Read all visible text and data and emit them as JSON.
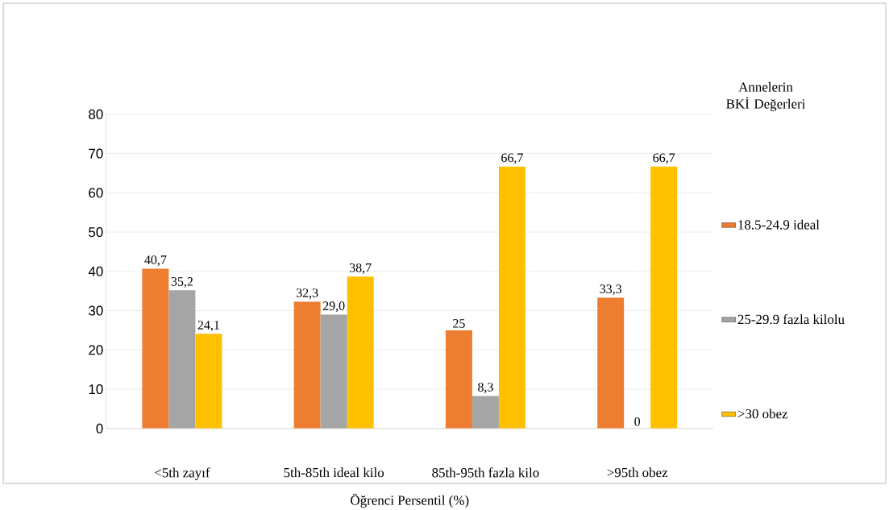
{
  "chart_data": {
    "type": "bar",
    "categories": [
      "<5th zayıf",
      "5th-85th ideal kilo",
      "85th-95th fazla kilo",
      ">95th obez"
    ],
    "xlabel": "Öğrenci Persentil  (%)",
    "legend_title": "Annelerin BKİ Değerleri",
    "series": [
      {
        "name": "18.5-24.9 ideal",
        "color": "#ed7d31",
        "values": [
          40.7,
          32.3,
          25,
          33.3
        ],
        "value_labels": [
          "40,7",
          "32,3",
          "25",
          "33,3"
        ]
      },
      {
        "name": "25-29.9 fazla kilolu",
        "color": "#a5a5a5",
        "values": [
          35.2,
          29.0,
          8.3,
          0
        ],
        "value_labels": [
          "35,2",
          "29,0",
          "8,3",
          "0"
        ]
      },
      {
        "name": ">30 obez",
        "color": "#ffc000",
        "values": [
          24.1,
          38.7,
          66.7,
          66.7
        ],
        "value_labels": [
          "24,1",
          "38,7",
          "66,7",
          "66,7"
        ]
      }
    ],
    "ylim": [
      0,
      80
    ],
    "yticks": [
      0,
      10,
      20,
      30,
      40,
      50,
      60,
      70,
      80
    ],
    "grid": "y",
    "legend": "right"
  }
}
